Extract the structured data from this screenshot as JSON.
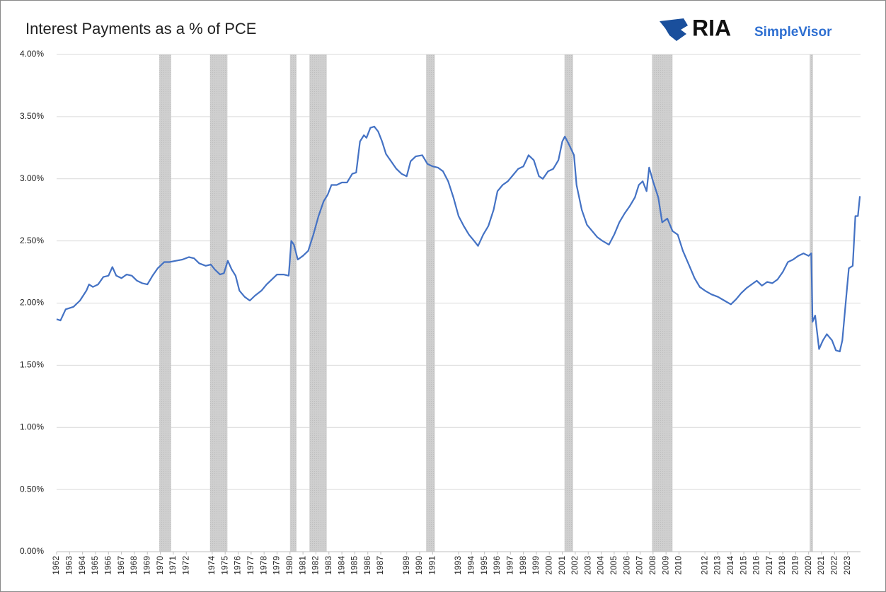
{
  "branding": {
    "name": "RIA",
    "product": "SimpleVisor"
  },
  "chart_data": {
    "type": "line",
    "title": "Interest Payments as a % of PCE",
    "color": "#4472c4",
    "grid": true,
    "xlim": [
      1962,
      2024
    ],
    "xticks": [
      1962,
      1963,
      1964,
      1965,
      1966,
      1967,
      1968,
      1969,
      1970,
      1971,
      1972,
      1974,
      1975,
      1976,
      1977,
      1978,
      1979,
      1980,
      1981,
      1982,
      1983,
      1984,
      1985,
      1986,
      1987,
      1989,
      1990,
      1991,
      1993,
      1994,
      1995,
      1996,
      1997,
      1998,
      1999,
      2000,
      2001,
      2002,
      2003,
      2004,
      2005,
      2006,
      2007,
      2008,
      2009,
      2010,
      2012,
      2013,
      2014,
      2015,
      2016,
      2017,
      2018,
      2019,
      2020,
      2021,
      2022,
      2023
    ],
    "ylim": [
      0,
      4
    ],
    "yticks": [
      {
        "value": 0,
        "label": "0.00%"
      },
      {
        "value": 0.5,
        "label": "0.50%"
      },
      {
        "value": 1,
        "label": "1.00%"
      },
      {
        "value": 1.5,
        "label": "1.50%"
      },
      {
        "value": 2,
        "label": "2.00%"
      },
      {
        "value": 2.5,
        "label": "2.50%"
      },
      {
        "value": 3,
        "label": "3.00%"
      },
      {
        "value": 3.5,
        "label": "3.50%"
      },
      {
        "value": 4,
        "label": "4.00%"
      }
    ],
    "recessions": [
      {
        "start": 1969.92,
        "end": 1970.83
      },
      {
        "start": 1973.83,
        "end": 1975.17
      },
      {
        "start": 1980.0,
        "end": 1980.5
      },
      {
        "start": 1981.5,
        "end": 1982.83
      },
      {
        "start": 1990.5,
        "end": 1991.17
      },
      {
        "start": 2001.17,
        "end": 2001.83
      },
      {
        "start": 2007.92,
        "end": 2009.5
      },
      {
        "start": 2020.08,
        "end": 2020.33
      }
    ],
    "x": [
      1962.0,
      1962.3,
      1962.7,
      1963.3,
      1963.8,
      1964.3,
      1964.5,
      1964.8,
      1965.2,
      1965.6,
      1966.0,
      1966.3,
      1966.6,
      1967.0,
      1967.4,
      1967.8,
      1968.2,
      1968.6,
      1969.0,
      1969.4,
      1969.8,
      1970.3,
      1970.7,
      1971.2,
      1971.7,
      1972.2,
      1972.6,
      1973.0,
      1973.5,
      1973.9,
      1974.2,
      1974.6,
      1974.9,
      1975.2,
      1975.5,
      1975.8,
      1976.1,
      1976.5,
      1976.9,
      1977.3,
      1977.8,
      1978.2,
      1978.6,
      1979.0,
      1979.5,
      1979.9,
      1980.1,
      1980.3,
      1980.6,
      1981.0,
      1981.4,
      1981.8,
      1982.2,
      1982.6,
      1982.9,
      1983.2,
      1983.6,
      1984.0,
      1984.4,
      1984.8,
      1985.1,
      1985.4,
      1985.7,
      1985.9,
      1986.2,
      1986.5,
      1986.8,
      1987.1,
      1987.4,
      1987.8,
      1988.2,
      1988.6,
      1989.0,
      1989.3,
      1989.7,
      1990.2,
      1990.6,
      1991.0,
      1991.4,
      1991.8,
      1992.2,
      1992.6,
      1993.0,
      1993.4,
      1993.8,
      1994.2,
      1994.5,
      1994.9,
      1995.3,
      1995.7,
      1996.0,
      1996.4,
      1996.8,
      1997.2,
      1997.6,
      1998.0,
      1998.4,
      1998.8,
      1999.2,
      1999.5,
      1999.9,
      2000.3,
      2000.7,
      2001.0,
      2001.2,
      2001.5,
      2001.9,
      2002.1,
      2002.5,
      2002.9,
      2003.3,
      2003.7,
      2004.1,
      2004.6,
      2005.0,
      2005.4,
      2005.8,
      2006.2,
      2006.6,
      2006.9,
      2007.2,
      2007.5,
      2007.7,
      2008.0,
      2008.4,
      2008.7,
      2009.1,
      2009.5,
      2009.9,
      2010.3,
      2010.8,
      2011.2,
      2011.6,
      2012.0,
      2012.5,
      2013.0,
      2013.5,
      2014.0,
      2014.4,
      2014.8,
      2015.2,
      2015.6,
      2016.0,
      2016.4,
      2016.8,
      2017.2,
      2017.6,
      2018.0,
      2018.4,
      2018.8,
      2019.2,
      2019.6,
      2020.0,
      2020.2,
      2020.3,
      2020.5,
      2020.8,
      2021.1,
      2021.4,
      2021.8,
      2022.1,
      2022.4,
      2022.6,
      2022.9,
      2023.1,
      2023.4,
      2023.6,
      2023.8,
      2023.95
    ],
    "values": [
      1.87,
      1.86,
      1.95,
      1.97,
      2.02,
      2.1,
      2.15,
      2.13,
      2.15,
      2.21,
      2.22,
      2.29,
      2.22,
      2.2,
      2.23,
      2.22,
      2.18,
      2.16,
      2.15,
      2.22,
      2.28,
      2.33,
      2.33,
      2.34,
      2.35,
      2.37,
      2.36,
      2.32,
      2.3,
      2.31,
      2.27,
      2.23,
      2.24,
      2.34,
      2.27,
      2.22,
      2.1,
      2.05,
      2.02,
      2.06,
      2.1,
      2.15,
      2.19,
      2.23,
      2.23,
      2.22,
      2.5,
      2.47,
      2.35,
      2.38,
      2.42,
      2.55,
      2.7,
      2.82,
      2.87,
      2.95,
      2.95,
      2.97,
      2.97,
      3.04,
      3.05,
      3.3,
      3.35,
      3.33,
      3.41,
      3.42,
      3.38,
      3.3,
      3.2,
      3.14,
      3.08,
      3.04,
      3.02,
      3.14,
      3.18,
      3.19,
      3.12,
      3.1,
      3.09,
      3.06,
      2.98,
      2.85,
      2.7,
      2.62,
      2.55,
      2.5,
      2.46,
      2.55,
      2.62,
      2.75,
      2.9,
      2.95,
      2.98,
      3.03,
      3.08,
      3.1,
      3.19,
      3.15,
      3.02,
      3.0,
      3.06,
      3.08,
      3.15,
      3.3,
      3.34,
      3.28,
      3.19,
      2.95,
      2.75,
      2.63,
      2.58,
      2.53,
      2.5,
      2.47,
      2.55,
      2.65,
      2.72,
      2.78,
      2.85,
      2.95,
      2.98,
      2.9,
      3.09,
      2.98,
      2.85,
      2.65,
      2.68,
      2.58,
      2.55,
      2.42,
      2.3,
      2.2,
      2.13,
      2.1,
      2.07,
      2.05,
      2.02,
      1.99,
      2.03,
      2.08,
      2.12,
      2.15,
      2.18,
      2.14,
      2.17,
      2.16,
      2.19,
      2.25,
      2.33,
      2.35,
      2.38,
      2.4,
      2.38,
      2.4,
      1.85,
      1.9,
      1.63,
      1.7,
      1.75,
      1.7,
      1.62,
      1.61,
      1.7,
      2.05,
      2.28,
      2.3,
      2.7,
      2.7,
      2.86
    ]
  }
}
